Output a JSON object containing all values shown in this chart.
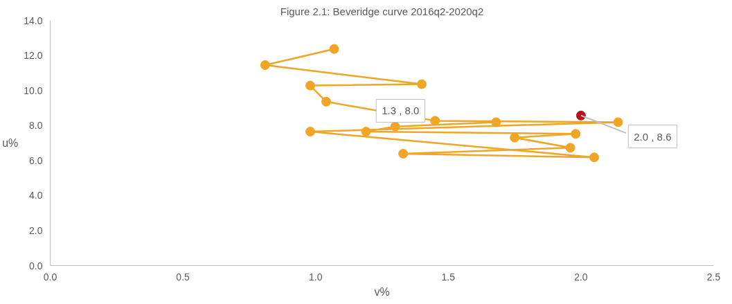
{
  "chart_data": {
    "type": "line",
    "title": "Figure 2.1: Beveridge curve 2016q2-2020q2",
    "xlabel": "v%",
    "ylabel": "u%",
    "xlim": [
      0,
      2.5
    ],
    "xticks": [
      {
        "value": 0,
        "label": "0.0"
      },
      {
        "value": 0.5,
        "label": "0.5"
      },
      {
        "value": 1,
        "label": "1.0"
      },
      {
        "value": 1.5,
        "label": "1.5"
      },
      {
        "value": 2,
        "label": "2.0"
      },
      {
        "value": 2.5,
        "label": "2.5"
      }
    ],
    "ylim": [
      0,
      14
    ],
    "yticks": [
      {
        "value": 0,
        "label": "0.0"
      },
      {
        "value": 2,
        "label": "2.0"
      },
      {
        "value": 4,
        "label": "4.0"
      },
      {
        "value": 6,
        "label": "6.0"
      },
      {
        "value": 8,
        "label": "8.0"
      },
      {
        "value": 10,
        "label": "10.0"
      },
      {
        "value": 12,
        "label": "12.0"
      },
      {
        "value": 14,
        "label": "14.0"
      }
    ],
    "grid": false,
    "marker": "circle",
    "line_style": "solid",
    "series": [
      {
        "color": "#f0a526",
        "x": [
          1.07,
          0.81,
          1.4,
          0.98,
          1.04,
          1.45,
          2.14,
          0.98,
          2.05,
          1.33,
          1.96,
          1.75,
          1.98,
          1.19,
          1.3,
          1.68
        ],
        "values": [
          12.37,
          11.45,
          10.36,
          10.28,
          9.36,
          8.27,
          8.19,
          7.65,
          6.18,
          6.39,
          6.73,
          7.31,
          7.52,
          7.65,
          7.94,
          8.19
        ]
      },
      {
        "type": "scatter",
        "color": "#b5121b",
        "x": [
          2.0
        ],
        "values": [
          8.57
        ]
      }
    ],
    "annotations": [
      {
        "text": "1.3 , 8.0",
        "x": 1.3,
        "y": 7.94
      },
      {
        "text": "2.0 , 8.6",
        "x": 2.0,
        "y": 8.57
      }
    ]
  }
}
